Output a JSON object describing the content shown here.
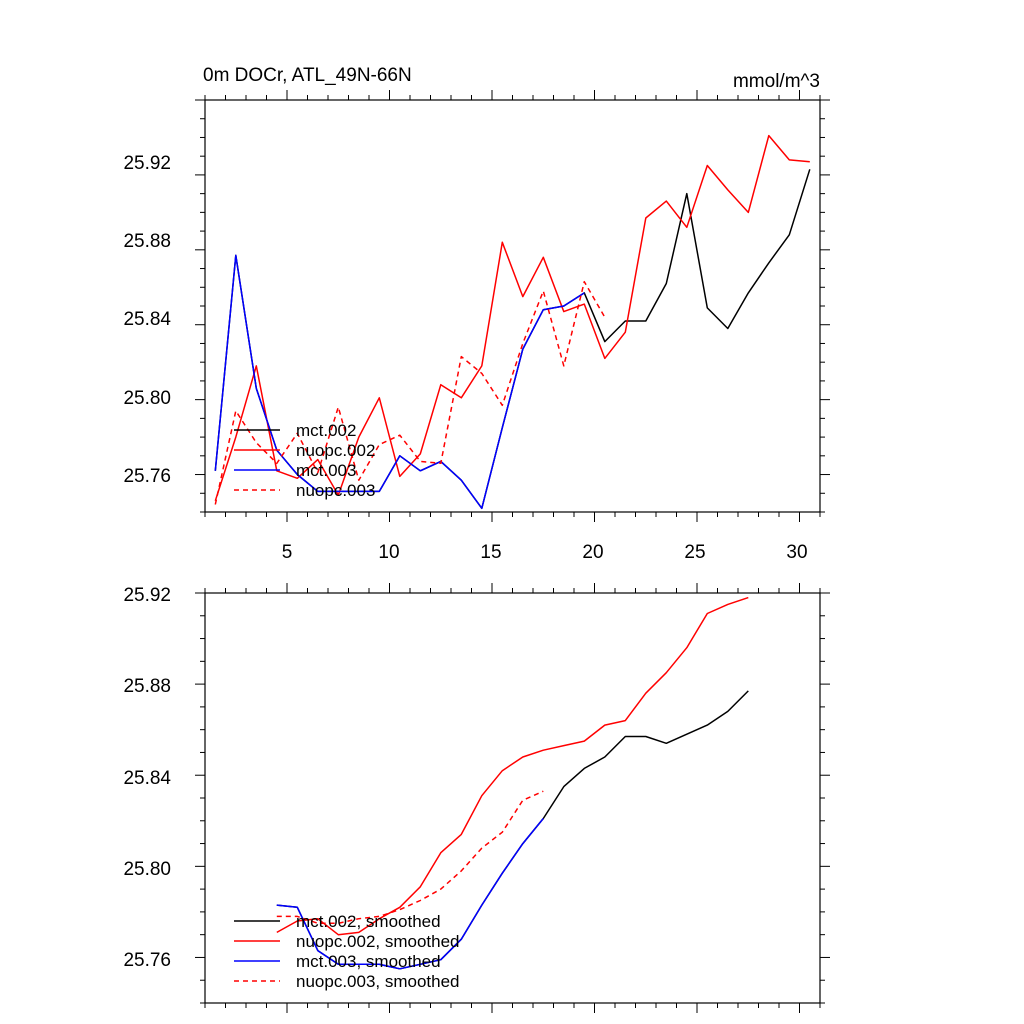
{
  "chart_data": [
    {
      "type": "line",
      "title": "0m DOCr, ATL_49N-66N",
      "units": "mmol/m^3",
      "xlim": [
        1,
        31
      ],
      "ylim": [
        25.74,
        25.96
      ],
      "xticks": [
        5,
        10,
        15,
        20,
        25,
        30
      ],
      "yticks": [
        25.76,
        25.8,
        25.84,
        25.88,
        25.92
      ],
      "ytick_labels": [
        "25.76",
        "25.80",
        "25.84",
        "25.88",
        "25.92"
      ],
      "xtick_labels": [
        "5",
        "10",
        "15",
        "20",
        "25",
        "30"
      ],
      "series": [
        {
          "name": "mct.002",
          "color": "#000000",
          "dash": false,
          "x": [
            1.5,
            2.5,
            3.5,
            4.5,
            5.5,
            6.5,
            7.5,
            8.5,
            9.5,
            10.5,
            11.5,
            12.5,
            13.5,
            14.5,
            15.5,
            16.5,
            17.5,
            18.5,
            19.5,
            20.5,
            21.5,
            22.5,
            23.5,
            24.5,
            25.5,
            26.5,
            27.5,
            28.5,
            29.5,
            30.5
          ],
          "y": [
            25.762,
            25.877,
            25.806,
            25.773,
            25.76,
            25.751,
            25.751,
            25.751,
            25.751,
            25.77,
            25.762,
            25.767,
            25.757,
            25.742,
            25.785,
            25.827,
            25.848,
            25.85,
            25.857,
            25.831,
            25.842,
            25.842,
            25.862,
            25.91,
            25.849,
            25.838,
            25.857,
            25.873,
            25.888,
            25.923
          ]
        },
        {
          "name": "nuopc.002",
          "color": "#ff0000",
          "dash": false,
          "x": [
            1.5,
            2.5,
            3.5,
            4.5,
            5.5,
            6.5,
            7.5,
            8.5,
            9.5,
            10.5,
            11.5,
            12.5,
            13.5,
            14.5,
            15.5,
            16.5,
            17.5,
            18.5,
            19.5,
            20.5,
            21.5,
            22.5,
            23.5,
            24.5,
            25.5,
            26.5,
            27.5,
            28.5,
            29.5,
            30.5
          ],
          "y": [
            25.746,
            25.78,
            25.818,
            25.762,
            25.758,
            25.768,
            25.749,
            25.78,
            25.801,
            25.759,
            25.771,
            25.808,
            25.801,
            25.818,
            25.884,
            25.855,
            25.876,
            25.847,
            25.851,
            25.822,
            25.836,
            25.897,
            25.906,
            25.892,
            25.925,
            25.912,
            25.9,
            25.941,
            25.928,
            25.927
          ]
        },
        {
          "name": "mct.003",
          "color": "#0000ff",
          "dash": false,
          "x": [
            1.5,
            2.5,
            3.5,
            4.5,
            5.5,
            6.5,
            7.5,
            8.5,
            9.5,
            10.5,
            11.5,
            12.5,
            13.5,
            14.5,
            15.5,
            16.5,
            17.5,
            18.5,
            19.5
          ],
          "y": [
            25.762,
            25.877,
            25.806,
            25.773,
            25.76,
            25.751,
            25.751,
            25.751,
            25.751,
            25.77,
            25.762,
            25.767,
            25.757,
            25.742,
            25.785,
            25.827,
            25.848,
            25.85,
            25.857
          ]
        },
        {
          "name": "nuopc.003",
          "color": "#ff0000",
          "dash": true,
          "x": [
            1.5,
            2.5,
            3.5,
            4.5,
            5.5,
            6.5,
            7.5,
            8.5,
            9.5,
            10.5,
            11.5,
            12.5,
            13.5,
            14.5,
            15.5,
            16.5,
            17.5,
            18.5,
            19.5,
            20.5
          ],
          "y": [
            25.744,
            25.794,
            25.777,
            25.766,
            25.782,
            25.761,
            25.796,
            25.757,
            25.776,
            25.781,
            25.767,
            25.766,
            25.823,
            25.814,
            25.797,
            25.83,
            25.858,
            25.818,
            25.863,
            25.844
          ]
        }
      ],
      "legend_position": "lower-left"
    },
    {
      "type": "line",
      "title": "",
      "xlim": [
        1,
        31
      ],
      "ylim": [
        25.74,
        25.92
      ],
      "yticks": [
        25.76,
        25.8,
        25.84,
        25.88,
        25.92
      ],
      "ytick_labels": [
        "25.76",
        "25.80",
        "25.84",
        "25.88",
        "25.92"
      ],
      "series": [
        {
          "name": "mct.002, smoothed",
          "color": "#000000",
          "dash": false,
          "x": [
            4.5,
            5.5,
            6.5,
            7.5,
            8.5,
            9.5,
            10.5,
            11.5,
            12.5,
            13.5,
            14.5,
            15.5,
            16.5,
            17.5,
            18.5,
            19.5,
            20.5,
            21.5,
            22.5,
            23.5,
            24.5,
            25.5,
            26.5,
            27.5
          ],
          "y": [
            25.783,
            25.782,
            25.763,
            25.757,
            25.757,
            25.757,
            25.755,
            25.757,
            25.759,
            25.768,
            25.783,
            25.797,
            25.81,
            25.821,
            25.835,
            25.843,
            25.848,
            25.857,
            25.857,
            25.854,
            25.858,
            25.862,
            25.868,
            25.877
          ]
        },
        {
          "name": "nuopc.002, smoothed",
          "color": "#ff0000",
          "dash": false,
          "x": [
            4.5,
            5.5,
            6.5,
            7.5,
            8.5,
            9.5,
            10.5,
            11.5,
            12.5,
            13.5,
            14.5,
            15.5,
            16.5,
            17.5,
            18.5,
            19.5,
            20.5,
            21.5,
            22.5,
            23.5,
            24.5,
            25.5,
            26.5,
            27.5
          ],
          "y": [
            25.771,
            25.776,
            25.777,
            25.77,
            25.771,
            25.777,
            25.782,
            25.791,
            25.806,
            25.814,
            25.831,
            25.842,
            25.848,
            25.851,
            25.853,
            25.855,
            25.862,
            25.864,
            25.876,
            25.885,
            25.896,
            25.911,
            25.915,
            25.918
          ]
        },
        {
          "name": "mct.003, smoothed",
          "color": "#0000ff",
          "dash": false,
          "x": [
            4.5,
            5.5,
            6.5,
            7.5,
            8.5,
            9.5,
            10.5,
            11.5,
            12.5,
            13.5,
            14.5,
            15.5,
            16.5,
            17.5
          ],
          "y": [
            25.783,
            25.782,
            25.763,
            25.757,
            25.757,
            25.757,
            25.755,
            25.757,
            25.759,
            25.768,
            25.783,
            25.797,
            25.81,
            25.821
          ]
        },
        {
          "name": "nuopc.003, smoothed",
          "color": "#ff0000",
          "dash": true,
          "x": [
            4.5,
            5.5,
            6.5,
            7.5,
            8.5,
            9.5,
            10.5,
            11.5,
            12.5,
            13.5,
            14.5,
            15.5,
            16.5,
            17.5
          ],
          "y": [
            25.778,
            25.778,
            25.775,
            25.775,
            25.777,
            25.778,
            25.781,
            25.785,
            25.79,
            25.798,
            25.808,
            25.815,
            25.829,
            25.833
          ]
        }
      ],
      "legend_position": "lower-left"
    }
  ]
}
